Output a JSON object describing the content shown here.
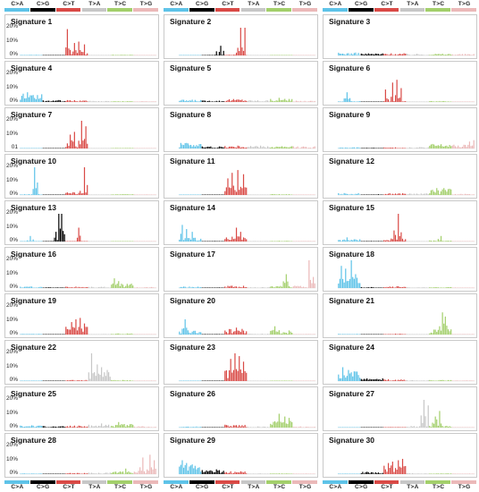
{
  "mutation_types": [
    "C>A",
    "C>G",
    "C>T",
    "T>A",
    "T>C",
    "T>G"
  ],
  "mutation_colors": [
    "#5ec3e8",
    "#000000",
    "#d94a46",
    "#c7c7c7",
    "#a3cf6b",
    "#ebb9b9"
  ],
  "chart_data": {
    "type": "bar",
    "layout": "grid of 30 small panels, 3 columns x 10 rows",
    "x_categories": [
      "C>A",
      "C>G",
      "C>T",
      "T>A",
      "T>C",
      "T>G"
    ],
    "bins_per_category": 16,
    "ytick_label_text": [
      "20%",
      "10%",
      "0%",
      "01"
    ],
    "grid": false,
    "panels": [
      {
        "title": "Signature 1",
        "yticks": [
          "20%",
          "10%",
          "0%"
        ],
        "ymax": 20,
        "peaks": [
          {
            "cat": 2,
            "bin": 1,
            "value": 19
          },
          {
            "cat": 2,
            "bin": 6,
            "value": 9
          },
          {
            "cat": 2,
            "bin": 9,
            "value": 10
          },
          {
            "cat": 2,
            "bin": 13,
            "value": 8
          },
          {
            "cat": 2,
            "bin": 3,
            "value": 4
          }
        ],
        "base": [
          0.4,
          0.2,
          0.8,
          0.1,
          0.4,
          0.1
        ]
      },
      {
        "title": "Signature 2",
        "yticks": [],
        "ymax": 20,
        "peaks": [
          {
            "cat": 1,
            "bin": 13,
            "value": 7
          },
          {
            "cat": 1,
            "bin": 10,
            "value": 3
          },
          {
            "cat": 2,
            "bin": 11,
            "value": 20
          },
          {
            "cat": 2,
            "bin": 14,
            "value": 20
          },
          {
            "cat": 2,
            "bin": 8,
            "value": 2
          }
        ],
        "base": [
          0.2,
          0.3,
          0.4,
          0.1,
          0.1,
          0.1
        ]
      },
      {
        "title": "Signature 3",
        "yticks": [],
        "ymax": 20,
        "peaks": [],
        "base": [
          1.5,
          1.2,
          1.2,
          0.9,
          1.0,
          0.8
        ]
      },
      {
        "title": "Signature 4",
        "yticks": [
          "20%",
          "10%",
          "0%"
        ],
        "ymax": 20,
        "peaks": [
          {
            "cat": 0,
            "bin": 2,
            "value": 6
          },
          {
            "cat": 0,
            "bin": 5,
            "value": 7
          },
          {
            "cat": 0,
            "bin": 9,
            "value": 5
          },
          {
            "cat": 0,
            "bin": 12,
            "value": 5
          }
        ],
        "base": [
          4,
          1,
          1,
          0.6,
          0.5,
          0.4
        ]
      },
      {
        "title": "Signature 5",
        "yticks": [],
        "ymax": 20,
        "peaks": [
          {
            "cat": 4,
            "bin": 6,
            "value": 3
          }
        ],
        "base": [
          1.2,
          0.8,
          1.6,
          1.0,
          1.6,
          0.7
        ]
      },
      {
        "title": "Signature 6",
        "yticks": [],
        "ymax": 20,
        "peaks": [
          {
            "cat": 0,
            "bin": 6,
            "value": 7
          },
          {
            "cat": 2,
            "bin": 1,
            "value": 9
          },
          {
            "cat": 2,
            "bin": 6,
            "value": 14
          },
          {
            "cat": 2,
            "bin": 9,
            "value": 16
          },
          {
            "cat": 2,
            "bin": 12,
            "value": 10
          }
        ],
        "base": [
          0.5,
          0.2,
          1.5,
          0.2,
          0.5,
          0.2
        ]
      },
      {
        "title": "Signature 7",
        "yticks": [
          "20%",
          "10%",
          "01"
        ],
        "ymax": 20,
        "peaks": [
          {
            "cat": 2,
            "bin": 3,
            "value": 10
          },
          {
            "cat": 2,
            "bin": 6,
            "value": 12
          },
          {
            "cat": 2,
            "bin": 11,
            "value": 20
          },
          {
            "cat": 2,
            "bin": 14,
            "value": 16
          }
        ],
        "base": [
          0.2,
          0.2,
          1.5,
          0.2,
          0.3,
          0.1
        ]
      },
      {
        "title": "Signature 8",
        "yticks": [],
        "ymax": 20,
        "peaks": [
          {
            "cat": 0,
            "bin": 1,
            "value": 4
          },
          {
            "cat": 0,
            "bin": 5,
            "value": 4
          }
        ],
        "base": [
          3,
          1.2,
          1.5,
          1.5,
          1.2,
          1.2
        ]
      },
      {
        "title": "Signature 9",
        "yticks": [],
        "ymax": 20,
        "peaks": [
          {
            "cat": 5,
            "bin": 12,
            "value": 5
          },
          {
            "cat": 5,
            "bin": 15,
            "value": 6
          }
        ],
        "base": [
          0.6,
          0.4,
          0.6,
          0.8,
          2.5,
          2.0
        ]
      },
      {
        "title": "Signature 10",
        "yticks": [
          "20%",
          "10%",
          "0%"
        ],
        "ymax": 20,
        "peaks": [
          {
            "cat": 0,
            "bin": 10,
            "value": 20
          },
          {
            "cat": 2,
            "bin": 13,
            "value": 20
          },
          {
            "cat": 2,
            "bin": 10,
            "value": 3
          }
        ],
        "base": [
          0.5,
          0.1,
          1.5,
          0.3,
          0.4,
          0.3
        ]
      },
      {
        "title": "Signature 11",
        "yticks": [],
        "ymax": 20,
        "peaks": [
          {
            "cat": 2,
            "bin": 2,
            "value": 12
          },
          {
            "cat": 2,
            "bin": 5,
            "value": 16
          },
          {
            "cat": 2,
            "bin": 9,
            "value": 18
          },
          {
            "cat": 2,
            "bin": 13,
            "value": 15
          }
        ],
        "base": [
          0.2,
          0.2,
          5,
          0.2,
          0.5,
          0.1
        ]
      },
      {
        "title": "Signature 12",
        "yticks": [],
        "ymax": 20,
        "peaks": [
          {
            "cat": 4,
            "bin": 5,
            "value": 5
          },
          {
            "cat": 4,
            "bin": 10,
            "value": 5
          }
        ],
        "base": [
          1.0,
          0.4,
          1.0,
          0.8,
          3.5,
          0.6
        ]
      },
      {
        "title": "Signature 13",
        "yticks": [
          "20%",
          "10%",
          "0%"
        ],
        "ymax": 20,
        "peaks": [
          {
            "cat": 1,
            "bin": 9,
            "value": 7
          },
          {
            "cat": 1,
            "bin": 11,
            "value": 20
          },
          {
            "cat": 1,
            "bin": 13,
            "value": 20
          },
          {
            "cat": 0,
            "bin": 7,
            "value": 4
          },
          {
            "cat": 2,
            "bin": 9,
            "value": 10
          }
        ],
        "base": [
          0.2,
          0.3,
          0.3,
          0.1,
          0.1,
          0.1
        ]
      },
      {
        "title": "Signature 14",
        "yticks": [],
        "ymax": 20,
        "peaks": [
          {
            "cat": 0,
            "bin": 2,
            "value": 12
          },
          {
            "cat": 0,
            "bin": 5,
            "value": 9
          },
          {
            "cat": 0,
            "bin": 9,
            "value": 7
          },
          {
            "cat": 2,
            "bin": 8,
            "value": 10
          },
          {
            "cat": 2,
            "bin": 11,
            "value": 7
          }
        ],
        "base": [
          2,
          0.3,
          2.5,
          0.3,
          0.4,
          0.3
        ]
      },
      {
        "title": "Signature 15",
        "yticks": [],
        "ymax": 20,
        "peaks": [
          {
            "cat": 2,
            "bin": 10,
            "value": 20
          },
          {
            "cat": 2,
            "bin": 7,
            "value": 8
          },
          {
            "cat": 0,
            "bin": 6,
            "value": 3
          },
          {
            "cat": 4,
            "bin": 8,
            "value": 4
          }
        ],
        "base": [
          1.2,
          0.3,
          1.5,
          0.3,
          0.6,
          0.2
        ]
      },
      {
        "title": "Signature 16",
        "yticks": [
          "20%",
          "10%",
          "0%"
        ],
        "ymax": 20,
        "peaks": [
          {
            "cat": 4,
            "bin": 2,
            "value": 7
          },
          {
            "cat": 4,
            "bin": 5,
            "value": 5
          }
        ],
        "base": [
          0.8,
          0.4,
          0.8,
          0.7,
          2.5,
          0.6
        ]
      },
      {
        "title": "Signature 17",
        "yticks": [],
        "ymax": 20,
        "peaks": [
          {
            "cat": 4,
            "bin": 11,
            "value": 10
          },
          {
            "cat": 5,
            "bin": 11,
            "value": 20
          },
          {
            "cat": 5,
            "bin": 14,
            "value": 8
          }
        ],
        "base": [
          0.8,
          0.3,
          1.2,
          0.5,
          1.2,
          1.2
        ]
      },
      {
        "title": "Signature 18",
        "yticks": [],
        "ymax": 20,
        "peaks": [
          {
            "cat": 0,
            "bin": 2,
            "value": 16
          },
          {
            "cat": 0,
            "bin": 5,
            "value": 14
          },
          {
            "cat": 0,
            "bin": 9,
            "value": 20
          },
          {
            "cat": 0,
            "bin": 12,
            "value": 10
          }
        ],
        "base": [
          6,
          0.6,
          1.0,
          0.4,
          0.5,
          0.3
        ]
      },
      {
        "title": "Signature 19",
        "yticks": [
          "20%",
          "10%",
          "0%"
        ],
        "ymax": 20,
        "peaks": [
          {
            "cat": 2,
            "bin": 4,
            "value": 9
          },
          {
            "cat": 2,
            "bin": 7,
            "value": 11
          },
          {
            "cat": 2,
            "bin": 10,
            "value": 12
          },
          {
            "cat": 2,
            "bin": 13,
            "value": 8
          }
        ],
        "base": [
          0.4,
          0.2,
          4,
          0.3,
          0.6,
          0.2
        ]
      },
      {
        "title": "Signature 20",
        "yticks": [],
        "ymax": 20,
        "peaks": [
          {
            "cat": 0,
            "bin": 4,
            "value": 11
          },
          {
            "cat": 2,
            "bin": 8,
            "value": 5
          },
          {
            "cat": 4,
            "bin": 3,
            "value": 6
          }
        ],
        "base": [
          2,
          0.3,
          3,
          0.5,
          2.5,
          0.3
        ]
      },
      {
        "title": "Signature 21",
        "yticks": [],
        "ymax": 20,
        "peaks": [
          {
            "cat": 4,
            "bin": 9,
            "value": 16
          },
          {
            "cat": 4,
            "bin": 11,
            "value": 13
          },
          {
            "cat": 4,
            "bin": 7,
            "value": 6
          }
        ],
        "base": [
          0.4,
          0.2,
          0.5,
          0.3,
          3,
          0.3
        ]
      },
      {
        "title": "Signature 22",
        "yticks": [
          "20%",
          "10%",
          "0%"
        ],
        "ymax": 20,
        "peaks": [
          {
            "cat": 3,
            "bin": 2,
            "value": 20
          },
          {
            "cat": 3,
            "bin": 6,
            "value": 12
          },
          {
            "cat": 3,
            "bin": 9,
            "value": 10
          },
          {
            "cat": 3,
            "bin": 13,
            "value": 8
          }
        ],
        "base": [
          0.3,
          0.2,
          0.6,
          5,
          0.6,
          0.3
        ]
      },
      {
        "title": "Signature 23",
        "yticks": [],
        "ymax": 20,
        "peaks": [
          {
            "cat": 2,
            "bin": 4,
            "value": 16
          },
          {
            "cat": 2,
            "bin": 7,
            "value": 20
          },
          {
            "cat": 2,
            "bin": 10,
            "value": 18
          },
          {
            "cat": 2,
            "bin": 13,
            "value": 14
          }
        ],
        "base": [
          0.2,
          0.1,
          6,
          0.2,
          0.3,
          0.1
        ]
      },
      {
        "title": "Signature 24",
        "yticks": [],
        "ymax": 20,
        "peaks": [
          {
            "cat": 0,
            "bin": 3,
            "value": 10
          },
          {
            "cat": 0,
            "bin": 7,
            "value": 8
          },
          {
            "cat": 0,
            "bin": 11,
            "value": 7
          }
        ],
        "base": [
          5,
          1.5,
          1.0,
          0.5,
          0.6,
          0.4
        ]
      },
      {
        "title": "Signature 25",
        "yticks": [
          "20%",
          "10%",
          "0%"
        ],
        "ymax": 20,
        "peaks": [
          {
            "cat": 4,
            "bin": 5,
            "value": 4
          },
          {
            "cat": 3,
            "bin": 9,
            "value": 3
          }
        ],
        "base": [
          1.2,
          0.8,
          1.2,
          1.6,
          2.0,
          0.8
        ]
      },
      {
        "title": "Signature 26",
        "yticks": [],
        "ymax": 20,
        "peaks": [
          {
            "cat": 4,
            "bin": 6,
            "value": 10
          },
          {
            "cat": 4,
            "bin": 10,
            "value": 8
          },
          {
            "cat": 4,
            "bin": 13,
            "value": 7
          }
        ],
        "base": [
          0.6,
          0.3,
          1.5,
          0.6,
          3.5,
          0.6
        ]
      },
      {
        "title": "Signature 27",
        "yticks": [],
        "ymax": 20,
        "peaks": [
          {
            "cat": 3,
            "bin": 12,
            "value": 20
          },
          {
            "cat": 3,
            "bin": 15,
            "value": 16
          },
          {
            "cat": 4,
            "bin": 7,
            "value": 12
          },
          {
            "cat": 4,
            "bin": 4,
            "value": 8
          }
        ],
        "base": [
          0.3,
          0.2,
          0.3,
          1.0,
          1.0,
          0.2
        ]
      },
      {
        "title": "Signature 28",
        "yticks": [
          "20%",
          "10%",
          "0%"
        ],
        "ymax": 20,
        "peaks": [
          {
            "cat": 5,
            "bin": 6,
            "value": 12
          },
          {
            "cat": 5,
            "bin": 11,
            "value": 14
          },
          {
            "cat": 5,
            "bin": 14,
            "value": 10
          },
          {
            "cat": 4,
            "bin": 10,
            "value": 4
          }
        ],
        "base": [
          0.4,
          0.2,
          0.6,
          0.8,
          1.6,
          2.0
        ]
      },
      {
        "title": "Signature 29",
        "yticks": [],
        "ymax": 20,
        "peaks": [
          {
            "cat": 0,
            "bin": 2,
            "value": 10
          },
          {
            "cat": 0,
            "bin": 5,
            "value": 8
          },
          {
            "cat": 0,
            "bin": 9,
            "value": 7
          }
        ],
        "base": [
          5,
          2.5,
          1.5,
          0.4,
          0.4,
          0.3
        ]
      },
      {
        "title": "Signature 30",
        "yticks": [],
        "ymax": 20,
        "peaks": [
          {
            "cat": 2,
            "bin": 3,
            "value": 8
          },
          {
            "cat": 2,
            "bin": 6,
            "value": 9
          },
          {
            "cat": 2,
            "bin": 10,
            "value": 10
          },
          {
            "cat": 2,
            "bin": 13,
            "value": 11
          }
        ],
        "base": [
          0.3,
          1.2,
          5,
          0.5,
          0.4,
          0.3
        ]
      }
    ]
  }
}
